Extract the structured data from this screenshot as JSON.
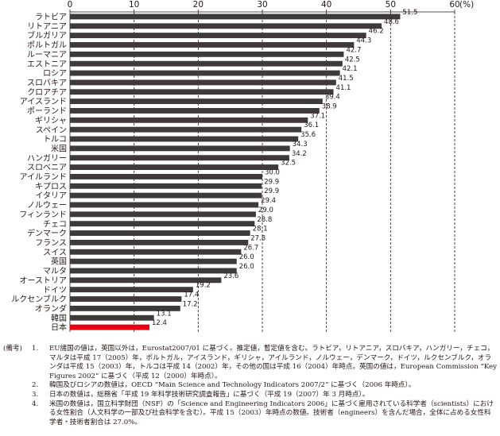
{
  "chart_data": {
    "type": "bar",
    "orientation": "horizontal",
    "title": "",
    "xlabel": "",
    "ylabel": "",
    "x_unit": "(%)",
    "xlim": [
      0,
      60
    ],
    "x_ticks": [
      "0",
      "10",
      "20",
      "30",
      "40",
      "50",
      "60"
    ],
    "grid": true,
    "categories": [
      "ラトビア",
      "リトアニア",
      "ブルガリア",
      "ポルトガル",
      "ルーマニア",
      "エストニア",
      "ロシア",
      "スロバキア",
      "クロアチア",
      "アイスランド",
      "ポーランド",
      "ギリシャ",
      "スペイン",
      "トルコ",
      "米国",
      "ハンガリー",
      "スロベニア",
      "アイルランド",
      "キプロス",
      "イタリア",
      "ノルウェー",
      "フィンランド",
      "チェコ",
      "デンマーク",
      "フランス",
      "スイス",
      "英国",
      "マルタ",
      "オーストリア",
      "ドイツ",
      "ルクセンブルク",
      "オランダ",
      "韓国",
      "日本"
    ],
    "values": [
      51.5,
      48.6,
      46.2,
      44.3,
      42.7,
      42.5,
      42.1,
      41.5,
      41.1,
      39.4,
      38.9,
      37.1,
      36.1,
      35.6,
      34.3,
      34.2,
      32.5,
      30.0,
      29.9,
      29.9,
      29.4,
      29.0,
      28.8,
      28.1,
      27.8,
      26.7,
      26.0,
      26.0,
      23.6,
      19.2,
      17.4,
      17.2,
      13.1,
      12.4
    ],
    "value_labels": [
      "51.5",
      "48.6",
      "46.2",
      "44.3",
      "42.7",
      "42.5",
      "42.1",
      "41.5",
      "41.1",
      "39.4",
      "38.9",
      "37.1",
      "36.1",
      "35.6",
      "34.3",
      "34.2",
      "32.5",
      "30.0",
      "29.9",
      "29.9",
      "29.4",
      "29.0",
      "28.8",
      "28.1",
      "27.8",
      "26.7",
      "26.0",
      "26.0",
      "23.6",
      "19.2",
      "17.4",
      "17.2",
      "13.1",
      "12.4"
    ],
    "highlight_category": "日本",
    "bar_color": "#3e3a39",
    "highlight_color": "#e60012"
  },
  "notes": {
    "tag": "(備考)",
    "items": [
      {
        "num": "1.",
        "text": "EU諸国の値は，英国以外は，Eurostat2007/01 に基づく。推定値，暫定値を含む。ラトビア，リトアニア，スロバキア，ハンガリー，チェコ，マルタは平成 17（2005）年，ポルトガル，アイスランド，ギリシャ，アイルランド，ノルウェー，デンマーク，ドイツ，ルクセンブルク，オランダは平成 15（2003）年，トルコは平成 14（2002）年，その他の国は平成 16（2004）年時点。英国の値は，European Commission “Key Figures 2002” に基づく（平成 12（2000）年時点）。"
      },
      {
        "num": "2.",
        "text": "韓国及びロシアの数値は，OECD “Main Science and Technology Indicators 2007/2” に基づく（2006 年時点）。"
      },
      {
        "num": "3.",
        "text": "日本の数値は，総務省「平成 19 年科学技術研究調査報告」に基づく（平成 19（2007）年 3 月時点）。"
      },
      {
        "num": "4.",
        "text": "米国の数値は，国立科学財団（NSF）の「Science and Engineering Indicators 2006」に基づく雇用されている科学者（scientists）における女性割合（人文科学の一部及び社会科学を含む）。平成 15（2003）年時点の数値。技術者（engineers）を含んだ場合，全体に占める女性科学者・技術者割合は 27.0%。"
      }
    ]
  }
}
